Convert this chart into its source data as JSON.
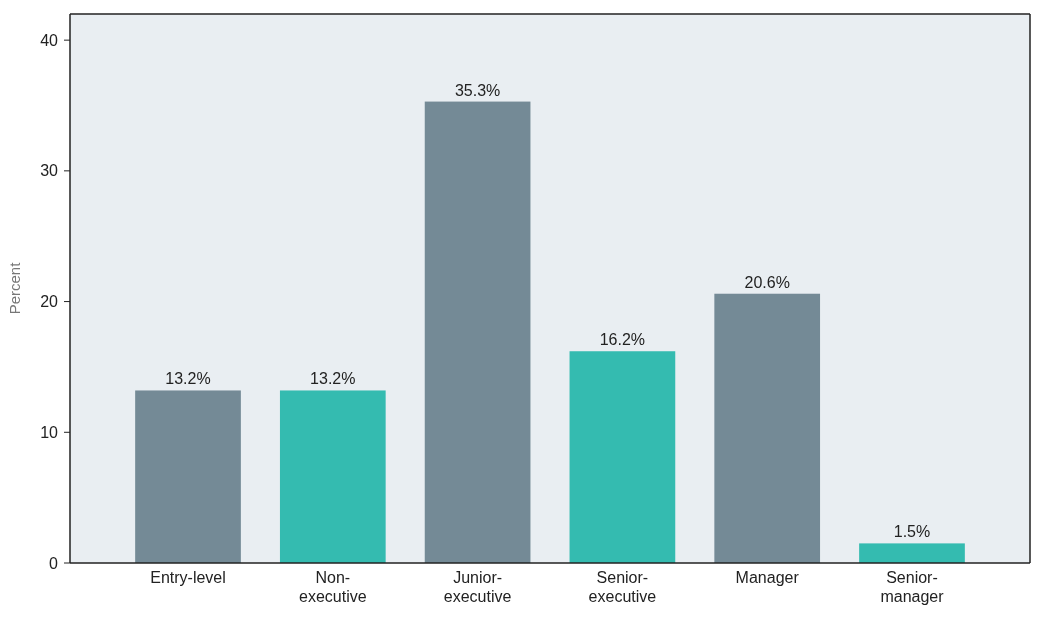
{
  "chart_data": {
    "type": "bar",
    "ylabel": "Percent",
    "categories": [
      "Entry-level",
      "Non-executive",
      "Junior-executive",
      "Senior-executive",
      "Manager",
      "Senior-manager"
    ],
    "values": [
      13.2,
      13.2,
      35.3,
      16.2,
      20.6,
      1.5
    ],
    "colors": [
      "#748a96",
      "#34bbb0",
      "#748a96",
      "#34bbb0",
      "#748a96",
      "#34bbb0"
    ],
    "value_labels": [
      "13.2%",
      "13.2%",
      "35.3%",
      "16.2%",
      "20.6%",
      "1.5%"
    ],
    "ylim": [
      0,
      42
    ],
    "yticks": [
      0,
      10,
      20,
      30,
      40
    ],
    "grid": false
  }
}
